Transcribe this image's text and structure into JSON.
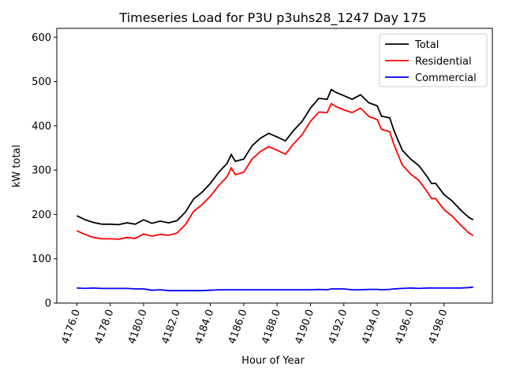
{
  "chart_data": {
    "type": "line",
    "title": "Timeseries Load for P3U p3uhs28_1247  Day 175",
    "xlabel": "Hour of Year",
    "ylabel": "kW total",
    "xlim": [
      4174.8,
      4200.9
    ],
    "ylim": [
      0,
      620
    ],
    "xticks": [
      4176,
      4178,
      4180,
      4182,
      4184,
      4186,
      4188,
      4190,
      4192,
      4194,
      4196,
      4198
    ],
    "xtick_labels": [
      "4176.0",
      "4178.0",
      "4180.0",
      "4182.0",
      "4184.0",
      "4186.0",
      "4188.0",
      "4190.0",
      "4192.0",
      "4194.0",
      "4196.0",
      "4198.0"
    ],
    "yticks": [
      0,
      100,
      200,
      300,
      400,
      500,
      600
    ],
    "ytick_labels": [
      "0",
      "100",
      "200",
      "300",
      "400",
      "500",
      "600"
    ],
    "grid": false,
    "legend_position": "top-right",
    "x": [
      4176,
      4176.5,
      4177,
      4177.5,
      4178,
      4178.5,
      4179,
      4179.5,
      4180,
      4180.5,
      4181,
      4181.5,
      4182,
      4182.5,
      4183,
      4183.5,
      4184,
      4184.5,
      4185,
      4185.25,
      4185.5,
      4186,
      4186.5,
      4187,
      4187.5,
      4188,
      4188.5,
      4189,
      4189.5,
      4190,
      4190.5,
      4191,
      4191.25,
      4191.5,
      4192,
      4192.5,
      4193,
      4193.5,
      4194,
      4194.25,
      4194.75,
      4195,
      4195.5,
      4196,
      4196.5,
      4197,
      4197.25,
      4197.5,
      4198,
      4198.5,
      4199,
      4199.5,
      4199.75
    ],
    "series": [
      {
        "name": "Total",
        "color": "#000000",
        "values": [
          197,
          188,
          182,
          178,
          178,
          177,
          181,
          178,
          188,
          180,
          185,
          181,
          186,
          205,
          235,
          250,
          270,
          295,
          315,
          335,
          320,
          325,
          355,
          372,
          383,
          375,
          366,
          390,
          410,
          440,
          462,
          460,
          482,
          476,
          468,
          460,
          470,
          452,
          445,
          422,
          418,
          390,
          345,
          325,
          310,
          285,
          270,
          270,
          245,
          230,
          210,
          193,
          188
        ]
      },
      {
        "name": "Residential",
        "color": "#ff0000",
        "values": [
          163,
          155,
          148,
          145,
          145,
          144,
          148,
          146,
          156,
          151,
          155,
          153,
          158,
          177,
          207,
          222,
          241,
          265,
          285,
          305,
          290,
          295,
          325,
          342,
          353,
          345,
          336,
          360,
          380,
          410,
          431,
          430,
          450,
          444,
          436,
          430,
          440,
          421,
          414,
          392,
          387,
          358,
          312,
          291,
          277,
          251,
          236,
          236,
          211,
          196,
          176,
          158,
          152
        ]
      },
      {
        "name": "Commercial",
        "color": "#0000ff",
        "values": [
          34,
          33,
          34,
          33,
          33,
          33,
          33,
          32,
          32,
          29,
          30,
          28,
          28,
          28,
          28,
          28,
          29,
          30,
          30,
          30,
          30,
          30,
          30,
          30,
          30,
          30,
          30,
          30,
          30,
          30,
          31,
          30,
          32,
          32,
          32,
          30,
          30,
          31,
          31,
          30,
          31,
          32,
          33,
          34,
          33,
          34,
          34,
          34,
          34,
          34,
          34,
          35,
          36
        ]
      }
    ]
  }
}
